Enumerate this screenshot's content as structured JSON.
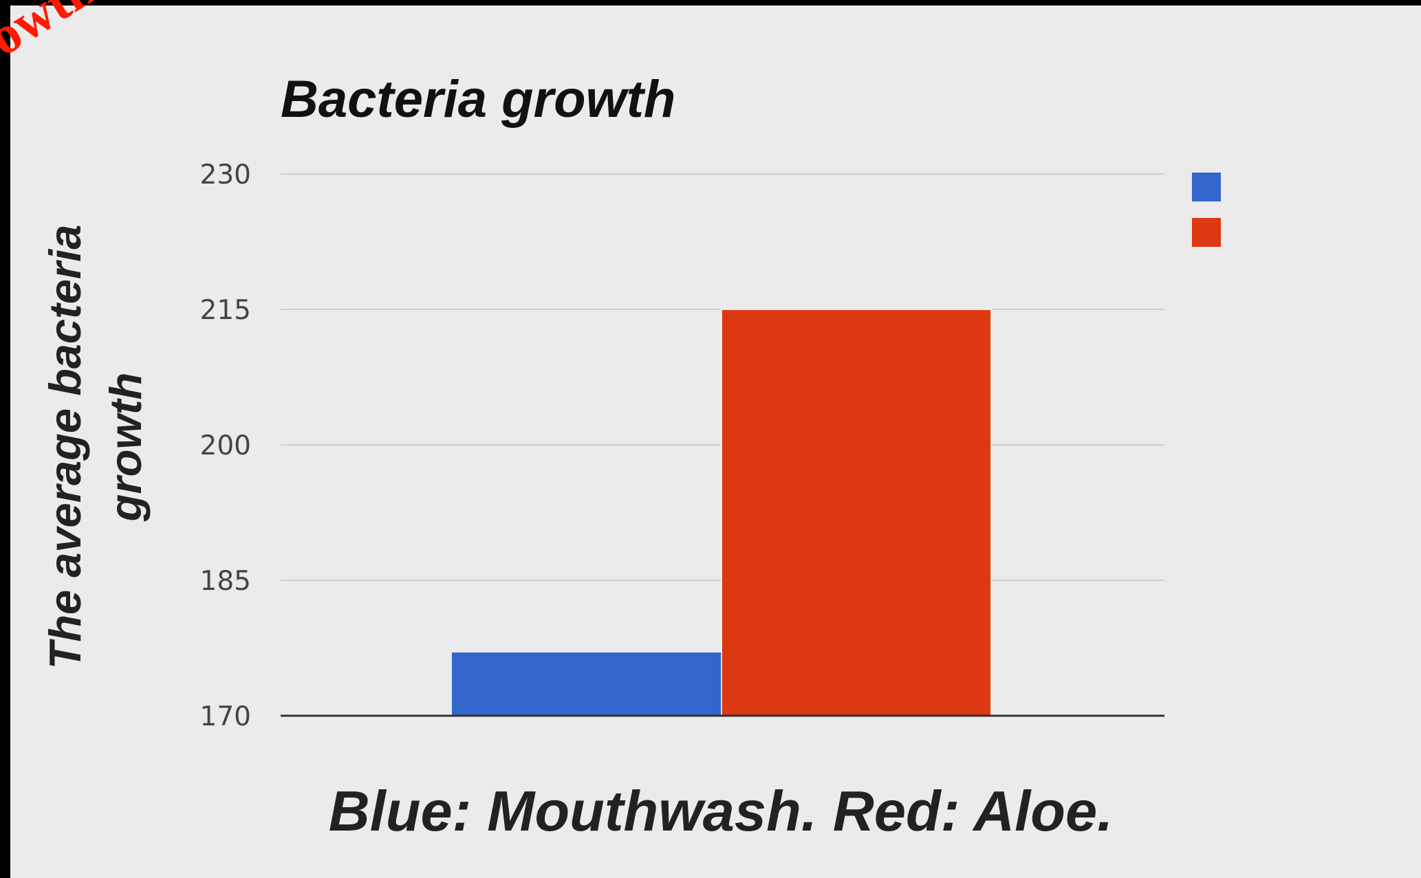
{
  "corner_fragment": "owth",
  "chart_data": {
    "type": "bar",
    "title": "Bacteria growth",
    "ylabel_lines": [
      "The average bacteria",
      "growth"
    ],
    "xlabel": "Blue: Mouthwash. Red: Aloe.",
    "ylim": [
      170,
      230
    ],
    "yticks": [
      230,
      215,
      200,
      185,
      170
    ],
    "grid": true,
    "legend_position": "right",
    "series": [
      {
        "color": "#3366cc",
        "values": [
          177
        ]
      },
      {
        "color": "#dc3912",
        "values": [
          215
        ]
      }
    ]
  }
}
